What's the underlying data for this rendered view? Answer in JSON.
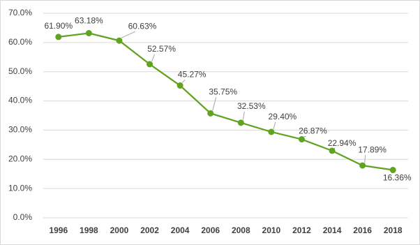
{
  "chart_data": {
    "type": "line",
    "categories": [
      "1996",
      "1998",
      "2000",
      "2002",
      "2004",
      "2006",
      "2008",
      "2010",
      "2012",
      "2014",
      "2016",
      "2018"
    ],
    "series": [
      {
        "color": "#60a320",
        "values": [
          61.9,
          63.18,
          60.63,
          52.57,
          45.27,
          35.75,
          32.53,
          29.4,
          26.87,
          22.94,
          17.89,
          16.36
        ],
        "value_labels": [
          "61.90%",
          "63.18%",
          "60.63%",
          "52.57%",
          "45.27%",
          "35.75%",
          "32.53%",
          "29.40%",
          "26.87%",
          "22.94%",
          "17.89%",
          "16.36%"
        ]
      }
    ],
    "ylim": [
      0,
      70
    ],
    "yticks": [
      {
        "value": 0,
        "label": "0.0%"
      },
      {
        "value": 10,
        "label": "10.0%"
      },
      {
        "value": 20,
        "label": "20.0%"
      },
      {
        "value": 30,
        "label": "30.0%"
      },
      {
        "value": 40,
        "label": "40.0%"
      },
      {
        "value": 50,
        "label": "50.0%"
      },
      {
        "value": 60,
        "label": "60.0%"
      },
      {
        "value": 70,
        "label": "70.0%"
      }
    ],
    "grid": true
  }
}
